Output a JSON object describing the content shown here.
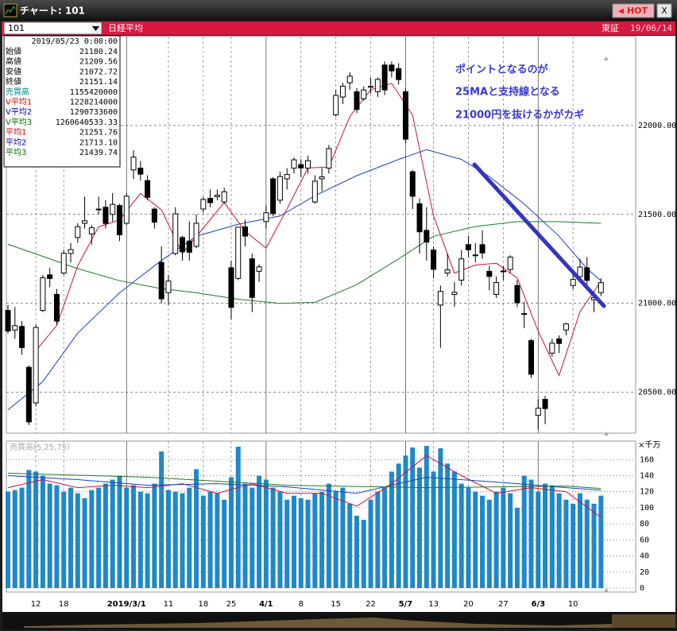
{
  "window": {
    "title": "チャート: 101",
    "hot": "HOT",
    "close": "X"
  },
  "toolbar": {
    "code": "101",
    "name": "日経平均",
    "market": "東証",
    "date": "19/06/14"
  },
  "info_box": {
    "date": "2019/05/23 0:00:00",
    "rows": [
      {
        "label": "始値",
        "value": "21180.24",
        "color": "#000000"
      },
      {
        "label": "高値",
        "value": "21209.56",
        "color": "#000000"
      },
      {
        "label": "安値",
        "value": "21072.72",
        "color": "#000000"
      },
      {
        "label": "終値",
        "value": "21151.14",
        "color": "#000000"
      },
      {
        "label": "売買高",
        "value": "1155420000",
        "color": "#008080"
      },
      {
        "label": "V平均1",
        "value": "1228214000",
        "color": "#d00000"
      },
      {
        "label": "V平均2",
        "value": "1290733600",
        "color": "#0000c0"
      },
      {
        "label": "V平均3",
        "value": "1260640533.33",
        "color": "#007000"
      },
      {
        "label": "平均1",
        "value": "21251.76",
        "color": "#d00000"
      },
      {
        "label": "平均2",
        "value": "21713.10",
        "color": "#0000c0"
      },
      {
        "label": "平均3",
        "value": "21439.74",
        "color": "#007000"
      }
    ]
  },
  "annotation": [
    "ポイントとなるのが",
    "25MAと支持線となる",
    "21000円を抜けるかがカギ"
  ],
  "chart_data": [
    {
      "type": "candlestick",
      "categories": [
        null,
        null,
        null,
        null,
        "12",
        null,
        null,
        null,
        "18",
        null,
        null,
        null,
        null,
        null,
        null,
        null,
        null,
        "2019/3/1",
        null,
        null,
        null,
        null,
        null,
        "11",
        null,
        null,
        null,
        null,
        "18",
        null,
        null,
        null,
        "25",
        null,
        null,
        null,
        null,
        "4/1",
        null,
        null,
        null,
        null,
        "8",
        null,
        null,
        null,
        null,
        "15",
        null,
        null,
        null,
        null,
        "22",
        null,
        null,
        null,
        null,
        "5/7",
        null,
        null,
        null,
        "13",
        null,
        null,
        null,
        null,
        "20",
        null,
        null,
        null,
        null,
        "27",
        null,
        null,
        null,
        null,
        "6/3",
        null,
        null,
        null,
        null,
        "10",
        null,
        null,
        null,
        null
      ],
      "open": [
        20960,
        20850,
        20870,
        20640,
        20440,
        20960,
        21160,
        21050,
        21170,
        21280,
        21370,
        21450,
        21390,
        21530,
        21540,
        21500,
        21550,
        21450,
        21750,
        21760,
        21690,
        21530,
        21230,
        21060,
        21280,
        21370,
        21350,
        21320,
        21530,
        21590,
        21600,
        21570,
        21200,
        21140,
        21430,
        21250,
        21180,
        21460,
        21700,
        21580,
        21700,
        21760,
        21780,
        21760,
        21570,
        21700,
        21760,
        22060,
        22160,
        22240,
        22190,
        22150,
        22220,
        22190,
        22340,
        22340,
        22320,
        22190,
        21740,
        21560,
        21410,
        21300,
        20990,
        21170,
        21050,
        21130,
        21330,
        21270,
        21330,
        21180,
        21050,
        21180,
        21190,
        21100,
        20940,
        20790,
        20370,
        20460,
        20720,
        20800,
        20850,
        21100,
        21150,
        21200,
        21020,
        21060
      ],
      "high": [
        20990,
        20980,
        20900,
        20650,
        20880,
        21160,
        21200,
        21080,
        21300,
        21340,
        21450,
        21600,
        21440,
        21600,
        21580,
        21620,
        21560,
        21620,
        21860,
        21800,
        21720,
        21540,
        21320,
        21160,
        21540,
        21380,
        21460,
        21500,
        21600,
        21640,
        21640,
        21650,
        21240,
        21430,
        21470,
        21280,
        21220,
        21550,
        21710,
        21740,
        21760,
        21820,
        21810,
        21830,
        21720,
        21760,
        21890,
        22200,
        22240,
        22300,
        22210,
        22220,
        22270,
        22270,
        22360,
        22360,
        22350,
        22210,
        21750,
        21590,
        21540,
        21320,
        21100,
        21280,
        21120,
        21300,
        21380,
        21340,
        21410,
        21210,
        21150,
        21210,
        21270,
        21130,
        21010,
        20800,
        20460,
        20480,
        20800,
        20820,
        20890,
        21160,
        21250,
        21260,
        21070,
        21140
      ],
      "low": [
        20830,
        20800,
        20710,
        20315,
        20420,
        20950,
        21090,
        20880,
        21160,
        21230,
        21340,
        21420,
        21330,
        21500,
        21420,
        21460,
        21350,
        21440,
        21700,
        21690,
        21580,
        21420,
        21000,
        20990,
        21270,
        21240,
        21240,
        21310,
        21510,
        21540,
        21580,
        21560,
        20910,
        21130,
        21320,
        20950,
        21120,
        21420,
        21490,
        21560,
        21640,
        21730,
        21710,
        21730,
        21560,
        21630,
        21730,
        22050,
        22120,
        22200,
        22070,
        22140,
        22180,
        22160,
        22170,
        22270,
        22230,
        21900,
        21530,
        21280,
        21240,
        21140,
        20750,
        21150,
        20980,
        21100,
        21260,
        21230,
        21250,
        21073,
        21030,
        21130,
        21170,
        20980,
        20860,
        20580,
        20290,
        20320,
        20700,
        20720,
        20820,
        21080,
        21120,
        21100,
        20950,
        21040
      ],
      "close": [
        20844,
        20874,
        20751,
        20333,
        20864,
        21144,
        21139,
        20900,
        21281,
        21302,
        21431,
        21464,
        21425,
        21528,
        21449,
        21556,
        21385,
        21602,
        21822,
        21726,
        21596,
        21456,
        21025,
        21125,
        21503,
        21290,
        21287,
        21450,
        21584,
        21566,
        21608,
        21627,
        20977,
        21428,
        21378,
        21033,
        21205,
        21509,
        21505,
        21713,
        21724,
        21807,
        21761,
        21802,
        21687,
        21711,
        21870,
        22169,
        22221,
        22277,
        22090,
        22200,
        22217,
        22259,
        22200,
        22307,
        22258,
        21923,
        21602,
        21402,
        21344,
        21191,
        21067,
        21188,
        21062,
        21250,
        21301,
        21272,
        21283,
        21151,
        21117,
        21182,
        21260,
        21003,
        20942,
        20601,
        20410,
        20408,
        20776,
        20774,
        20884,
        21134,
        21204,
        21129,
        21032,
        21116
      ],
      "lines": [
        {
          "color": "#d0103a",
          "x": [
            4,
            7,
            10,
            13,
            16,
            19,
            22,
            25,
            28,
            31,
            34,
            37,
            40,
            43,
            46,
            49,
            52,
            55,
            58,
            61,
            64,
            67,
            70,
            73,
            76,
            79,
            82,
            85
          ],
          "values": [
            20733,
            20876,
            21211,
            21430,
            21469,
            21618,
            21525,
            21280,
            21423,
            21567,
            21404,
            21311,
            21531,
            21761,
            21766,
            22050,
            22201,
            22237,
            22058,
            21492,
            21170,
            21215,
            21225,
            21143,
            20843,
            20594,
            20954,
            21123
          ]
        },
        {
          "color": "#1a44b8",
          "x": [
            0,
            5,
            10,
            16,
            22,
            27,
            33,
            39,
            44,
            50,
            56,
            60,
            65,
            69,
            74,
            79,
            83,
            85
          ],
          "values": [
            20400,
            20560,
            20832,
            21059,
            21241,
            21377,
            21445,
            21491,
            21605,
            21718,
            21809,
            21864,
            21809,
            21713,
            21559,
            21377,
            21195,
            21127
          ]
        },
        {
          "color": "#1d7a2a",
          "x": [
            0,
            5,
            10,
            16,
            22,
            27,
            33,
            39,
            44,
            50,
            56,
            61,
            67,
            73,
            79,
            85
          ],
          "values": [
            21332,
            21264,
            21195,
            21127,
            21082,
            21059,
            21023,
            21000,
            21005,
            21105,
            21250,
            21377,
            21432,
            21459,
            21459,
            21450
          ]
        }
      ],
      "ylim": [
        20270,
        22500
      ],
      "yticks": [
        {
          "value": 20500,
          "label": "20500.00"
        },
        {
          "value": 21000,
          "label": "21000.00"
        },
        {
          "value": 21500,
          "label": "21500.00"
        },
        {
          "value": 22000,
          "label": "22000.00"
        }
      ],
      "grid": true
    },
    {
      "type": "bar",
      "title": "売買高(5,25,75)",
      "unit": "×千万",
      "color": "#1f88c8",
      "values": [
        120,
        122,
        125,
        147,
        145,
        140,
        130,
        128,
        120,
        125,
        118,
        112,
        122,
        125,
        130,
        135,
        140,
        125,
        128,
        120,
        118,
        130,
        170,
        122,
        120,
        118,
        125,
        148,
        115,
        120,
        118,
        110,
        138,
        176,
        130,
        125,
        140,
        135,
        125,
        120,
        110,
        115,
        112,
        110,
        118,
        120,
        130,
        120,
        125,
        105,
        90,
        85,
        110,
        120,
        125,
        145,
        155,
        165,
        175,
        150,
        177,
        145,
        174,
        155,
        145,
        130,
        125,
        120,
        115,
        110,
        120,
        125,
        118,
        100,
        140,
        135,
        120,
        130,
        128,
        118,
        110,
        105,
        118,
        110,
        105,
        115
      ],
      "lines": [
        {
          "color": "#d0103a",
          "x": [
            0,
            5,
            10,
            15,
            20,
            25,
            30,
            35,
            40,
            45,
            50,
            55,
            60,
            65,
            70,
            75,
            80,
            85
          ],
          "values": [
            125,
            135,
            125,
            128,
            125,
            130,
            118,
            130,
            118,
            118,
            102,
            130,
            165,
            140,
            118,
            125,
            120,
            88
          ]
        },
        {
          "color": "#1a44b8",
          "x": [
            0,
            10,
            20,
            30,
            40,
            50,
            60,
            70,
            80,
            85
          ],
          "values": [
            140,
            135,
            128,
            130,
            126,
            118,
            138,
            132,
            125,
            122
          ]
        },
        {
          "color": "#1d7a2a",
          "x": [
            0,
            20,
            40,
            60,
            80,
            85
          ],
          "values": [
            143,
            138,
            128,
            125,
            127,
            124
          ]
        }
      ],
      "ylim": [
        0,
        183
      ],
      "yticks": [
        0,
        20,
        40,
        60,
        80,
        100,
        120,
        140,
        160
      ],
      "grid": true
    }
  ]
}
